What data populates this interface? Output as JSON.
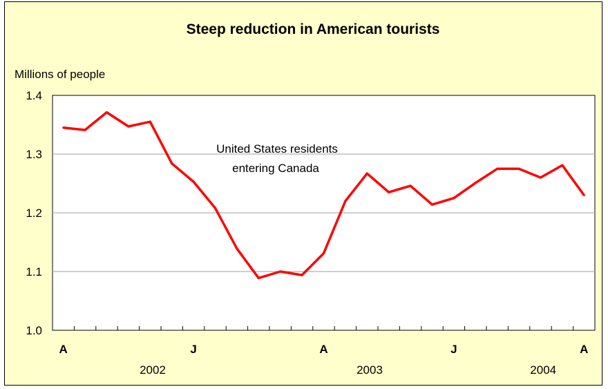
{
  "chart_data": {
    "type": "line",
    "title": "Steep reduction in American tourists",
    "ylabel": "Millions of people",
    "ylim": [
      1.0,
      1.4
    ],
    "yticks": [
      "1.0",
      "1.1",
      "1.2",
      "1.3",
      "1.4"
    ],
    "grid": true,
    "month_labels": [
      "A",
      "J",
      "A",
      "J",
      "A"
    ],
    "year_labels": [
      "2002",
      "2003",
      "2004"
    ],
    "annotation": [
      "United States residents",
      "entering Canada"
    ],
    "series": [
      {
        "color": "#ff0000",
        "values": [
          1.345,
          1.341,
          1.371,
          1.347,
          1.355,
          1.284,
          1.253,
          1.208,
          1.139,
          1.089,
          1.1,
          1.094,
          1.131,
          1.22,
          1.267,
          1.235,
          1.246,
          1.214,
          1.225,
          1.251,
          1.275,
          1.275,
          1.26,
          1.281,
          1.23
        ]
      }
    ]
  }
}
